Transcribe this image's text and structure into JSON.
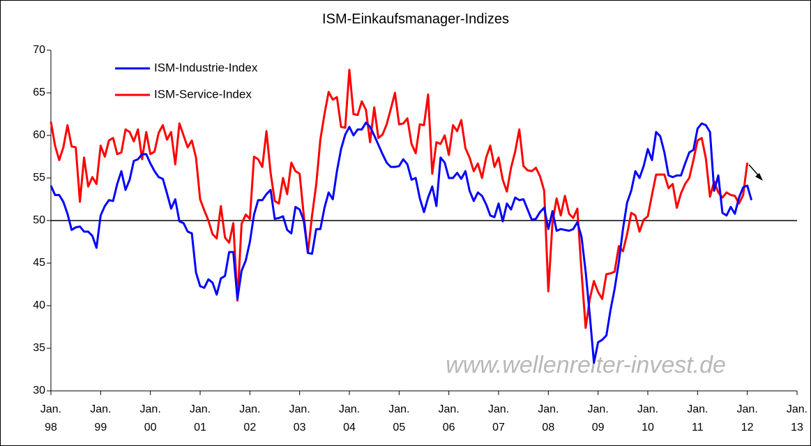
{
  "chart_data": {
    "type": "line",
    "title": "ISM-Einkaufsmanager-Indizes",
    "annotation": "www.wellenreiter-invest.de",
    "legend": "top-left",
    "reference_line": 50,
    "ylim": [
      30,
      70
    ],
    "yticks": [
      30,
      35,
      40,
      45,
      50,
      55,
      60,
      65,
      70
    ],
    "categories": [
      "Jan. 98",
      null,
      null,
      null,
      null,
      null,
      null,
      null,
      null,
      null,
      null,
      null,
      "Jan. 99",
      null,
      null,
      null,
      null,
      null,
      null,
      null,
      null,
      null,
      null,
      null,
      "Jan. 00",
      null,
      null,
      null,
      null,
      null,
      null,
      null,
      null,
      null,
      null,
      null,
      "Jan. 01",
      null,
      null,
      null,
      null,
      null,
      null,
      null,
      null,
      null,
      null,
      null,
      "Jan. 02",
      null,
      null,
      null,
      null,
      null,
      null,
      null,
      null,
      null,
      null,
      null,
      "Jan. 03",
      null,
      null,
      null,
      null,
      null,
      null,
      null,
      null,
      null,
      null,
      null,
      "Jan. 04",
      null,
      null,
      null,
      null,
      null,
      null,
      null,
      null,
      null,
      null,
      null,
      "Jan. 05",
      null,
      null,
      null,
      null,
      null,
      null,
      null,
      null,
      null,
      null,
      null,
      "Jan. 06",
      null,
      null,
      null,
      null,
      null,
      null,
      null,
      null,
      null,
      null,
      null,
      "Jan. 07",
      null,
      null,
      null,
      null,
      null,
      null,
      null,
      null,
      null,
      null,
      null,
      "Jan. 08",
      null,
      null,
      null,
      null,
      null,
      null,
      null,
      null,
      null,
      null,
      null,
      "Jan. 09",
      null,
      null,
      null,
      null,
      null,
      null,
      null,
      null,
      null,
      null,
      null,
      "Jan. 10",
      null,
      null,
      null,
      null,
      null,
      null,
      null,
      null,
      null,
      null,
      null,
      "Jan. 11",
      null,
      null,
      null,
      null,
      null,
      null,
      null,
      null,
      null,
      null,
      null,
      "Jan. 12",
      null,
      null,
      null,
      null,
      null,
      null,
      null,
      null,
      null,
      null,
      null,
      "Jan. 13"
    ],
    "series": [
      {
        "name": "ISM-Industrie-Index",
        "color": "#0000ff",
        "values": [
          54.1,
          53.0,
          53.0,
          52.2,
          50.8,
          48.9,
          49.2,
          49.3,
          48.7,
          48.7,
          48.2,
          46.8,
          50.6,
          51.7,
          52.4,
          52.3,
          54.3,
          55.8,
          53.6,
          54.8,
          57.0,
          57.2,
          57.8,
          57.8,
          56.7,
          55.8,
          55.1,
          54.9,
          53.2,
          51.4,
          52.5,
          49.9,
          49.7,
          48.7,
          48.5,
          43.9,
          42.3,
          42.1,
          43.1,
          42.7,
          41.3,
          43.2,
          43.5,
          46.3,
          46.3,
          40.8,
          44.1,
          45.3,
          47.5,
          50.7,
          52.4,
          52.4,
          53.1,
          53.6,
          50.2,
          50.3,
          50.5,
          48.9,
          48.5,
          51.6,
          51.3,
          50.0,
          46.2,
          46.1,
          49.0,
          49.0,
          51.5,
          53.3,
          52.5,
          55.8,
          58.4,
          60.1,
          61.0,
          60.0,
          60.7,
          60.7,
          61.5,
          61.0,
          60.0,
          58.9,
          57.8,
          56.8,
          56.3,
          56.3,
          56.4,
          57.2,
          56.6,
          54.8,
          55.0,
          52.6,
          51.0,
          52.7,
          54.0,
          51.7,
          57.4,
          56.8,
          55.0,
          55.0,
          55.6,
          54.9,
          55.8,
          53.5,
          52.3,
          53.3,
          52.9,
          51.9,
          50.6,
          50.4,
          52.0,
          49.9,
          52.0,
          51.3,
          52.7,
          52.4,
          52.5,
          51.3,
          50.1,
          50.2,
          51.0,
          51.5,
          49.0,
          51.1,
          48.8,
          49.0,
          48.9,
          48.8,
          49.0,
          49.8,
          48.1,
          44.0,
          38.9,
          33.3,
          35.7,
          36.0,
          36.5,
          39.5,
          42.0,
          45.1,
          49.0,
          52.1,
          53.5,
          55.8,
          55.0,
          56.4,
          58.4,
          57.1,
          60.4,
          59.9,
          58.0,
          55.3,
          55.1,
          55.3,
          55.3,
          56.7,
          58.0,
          58.3,
          60.8,
          61.4,
          61.2,
          60.4,
          53.5,
          55.3,
          50.9,
          50.6,
          51.6,
          50.8,
          52.7,
          53.9,
          54.1,
          52.4,
          null,
          null,
          null,
          null,
          null,
          null,
          null,
          null,
          null,
          null,
          null
        ]
      },
      {
        "name": "ISM-Service-Index",
        "color": "#ff0000",
        "values": [
          61.6,
          58.8,
          57.1,
          58.6,
          61.2,
          58.7,
          58.6,
          52.2,
          57.4,
          54.0,
          55.1,
          54.3,
          58.8,
          57.5,
          59.4,
          59.7,
          57.8,
          58.0,
          60.7,
          60.4,
          59.3,
          60.7,
          57.2,
          60.4,
          57.8,
          58.1,
          60.3,
          61.2,
          59.5,
          60.4,
          56.6,
          61.4,
          60.0,
          58.6,
          59.4,
          57.4,
          52.5,
          51.2,
          50.0,
          48.4,
          47.9,
          51.7,
          48.0,
          47.4,
          49.7,
          40.6,
          49.6,
          50.7,
          50.2,
          57.5,
          57.2,
          56.3,
          60.5,
          55.6,
          52.3,
          52.0,
          55.0,
          53.1,
          56.8,
          55.8,
          55.5,
          50.6,
          46.2,
          50.6,
          54.2,
          59.5,
          62.5,
          65.1,
          64.2,
          64.5,
          61.0,
          60.9,
          67.7,
          62.5,
          62.4,
          64.0,
          63.0,
          59.2,
          63.3,
          59.7,
          60.1,
          61.3,
          63.1,
          65.0,
          61.3,
          61.4,
          62.0,
          59.0,
          57.9,
          61.3,
          61.2,
          64.8,
          55.5,
          59.2,
          59.0,
          60.0,
          57.7,
          61.2,
          60.5,
          61.8,
          58.5,
          57.4,
          55.8,
          56.7,
          55.0,
          57.4,
          58.8,
          56.3,
          57.4,
          54.8,
          53.4,
          56.2,
          58.1,
          60.7,
          56.4,
          55.9,
          55.8,
          56.2,
          55.2,
          53.5,
          41.7,
          49.8,
          52.6,
          50.6,
          52.9,
          50.8,
          50.3,
          51.4,
          44.0,
          37.4,
          40.8,
          42.9,
          41.6,
          40.8,
          43.7,
          43.8,
          44.0,
          47.0,
          46.4,
          48.4,
          50.9,
          50.6,
          48.7,
          50.1,
          50.5,
          53.0,
          55.4,
          55.4,
          55.4,
          53.8,
          54.3,
          51.5,
          53.2,
          54.3,
          55.0,
          57.1,
          59.4,
          59.7,
          57.3,
          52.8,
          54.6,
          53.3,
          52.7,
          53.3,
          53.0,
          52.9,
          52.0,
          53.0,
          56.8,
          null,
          null,
          null,
          null,
          null,
          null,
          null,
          null,
          null,
          null,
          null,
          null
        ]
      }
    ]
  }
}
